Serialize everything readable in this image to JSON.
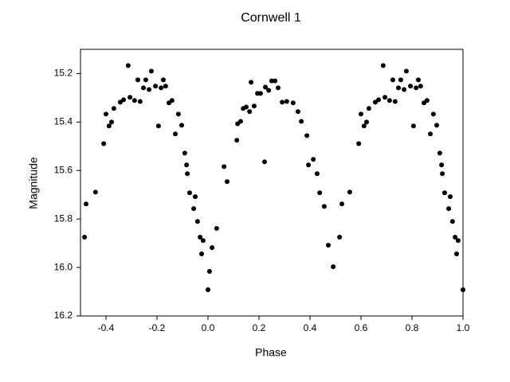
{
  "chart_data": {
    "type": "scatter",
    "title": "Cornwell 1",
    "xlabel": "Phase",
    "ylabel": "Magnitude",
    "color": "#000000",
    "xlim": [
      -0.5,
      1.0
    ],
    "ylim": [
      16.2,
      15.1
    ],
    "xticks": [
      -0.4,
      -0.2,
      {
        "value": 0,
        "label": "0.0"
      },
      0.2,
      0.4,
      0.6,
      0.8,
      {
        "value": 1,
        "label": "1.0"
      }
    ],
    "yticks": [
      15.2,
      15.4,
      15.6,
      15.8,
      {
        "value": 16,
        "label": "16.0"
      },
      16.2
    ],
    "series": [
      {
        "name": "Cornwell 1",
        "color": "#000000",
        "x": [
          -0.484,
          -0.478,
          -0.441,
          -0.409,
          -0.4,
          -0.388,
          -0.378,
          -0.369,
          -0.344,
          -0.331,
          -0.313,
          -0.306,
          -0.288,
          -0.275,
          -0.266,
          -0.253,
          -0.244,
          -0.231,
          -0.222,
          -0.206,
          -0.194,
          -0.184,
          -0.175,
          -0.166,
          -0.153,
          -0.141,
          -0.128,
          -0.116,
          -0.103,
          -0.091,
          -0.084,
          -0.081,
          -0.072,
          -0.056,
          -0.05,
          -0.041,
          -0.031,
          -0.025,
          -0.019,
          0.0,
          0.006,
          0.016,
          0.034,
          0.063,
          0.075,
          0.113,
          0.116,
          0.128,
          0.138,
          0.15,
          0.163,
          0.169,
          0.181,
          0.194,
          0.206,
          0.222,
          0.225,
          0.238,
          0.25,
          0.263,
          0.275,
          0.291,
          0.309,
          0.334,
          0.353,
          0.366,
          0.388,
          0.394,
          0.413,
          0.428,
          0.438,
          0.456,
          0.472,
          0.491,
          0.516,
          0.525,
          0.556,
          0.591,
          0.6,
          0.612,
          0.622,
          0.631,
          0.656,
          0.669,
          0.687,
          0.694,
          0.712,
          0.725,
          0.734,
          0.747,
          0.756,
          0.769,
          0.778,
          0.794,
          0.806,
          0.816,
          0.825,
          0.834,
          0.847,
          0.859,
          0.872,
          0.884,
          0.897,
          0.909,
          0.916,
          0.919,
          0.928,
          0.944,
          0.95,
          0.959,
          0.969,
          0.975,
          0.981,
          1.0
        ],
        "values": [
          15.875,
          15.738,
          15.689,
          15.489,
          15.367,
          15.416,
          15.4,
          15.344,
          15.318,
          15.308,
          15.167,
          15.298,
          15.311,
          15.226,
          15.315,
          15.259,
          15.226,
          15.266,
          15.19,
          15.252,
          15.416,
          15.259,
          15.226,
          15.252,
          15.321,
          15.311,
          15.449,
          15.367,
          15.413,
          15.528,
          15.577,
          15.613,
          15.692,
          15.757,
          15.708,
          15.81,
          15.875,
          15.944,
          15.889,
          16.092,
          16.016,
          15.918,
          15.839,
          15.584,
          15.646,
          15.475,
          15.407,
          15.397,
          15.344,
          15.338,
          15.357,
          15.236,
          15.334,
          15.282,
          15.282,
          15.564,
          15.256,
          15.269,
          15.23,
          15.23,
          15.259,
          15.318,
          15.315,
          15.321,
          15.357,
          15.397,
          15.456,
          15.577,
          15.554,
          15.613,
          15.692,
          15.748,
          15.908,
          15.997,
          15.875,
          15.738,
          15.689,
          15.489,
          15.367,
          15.416,
          15.4,
          15.344,
          15.318,
          15.308,
          15.167,
          15.298,
          15.311,
          15.226,
          15.315,
          15.259,
          15.226,
          15.266,
          15.19,
          15.252,
          15.416,
          15.259,
          15.226,
          15.252,
          15.321,
          15.311,
          15.449,
          15.367,
          15.413,
          15.528,
          15.577,
          15.613,
          15.692,
          15.757,
          15.708,
          15.81,
          15.875,
          15.944,
          15.889,
          16.092
        ]
      }
    ]
  }
}
